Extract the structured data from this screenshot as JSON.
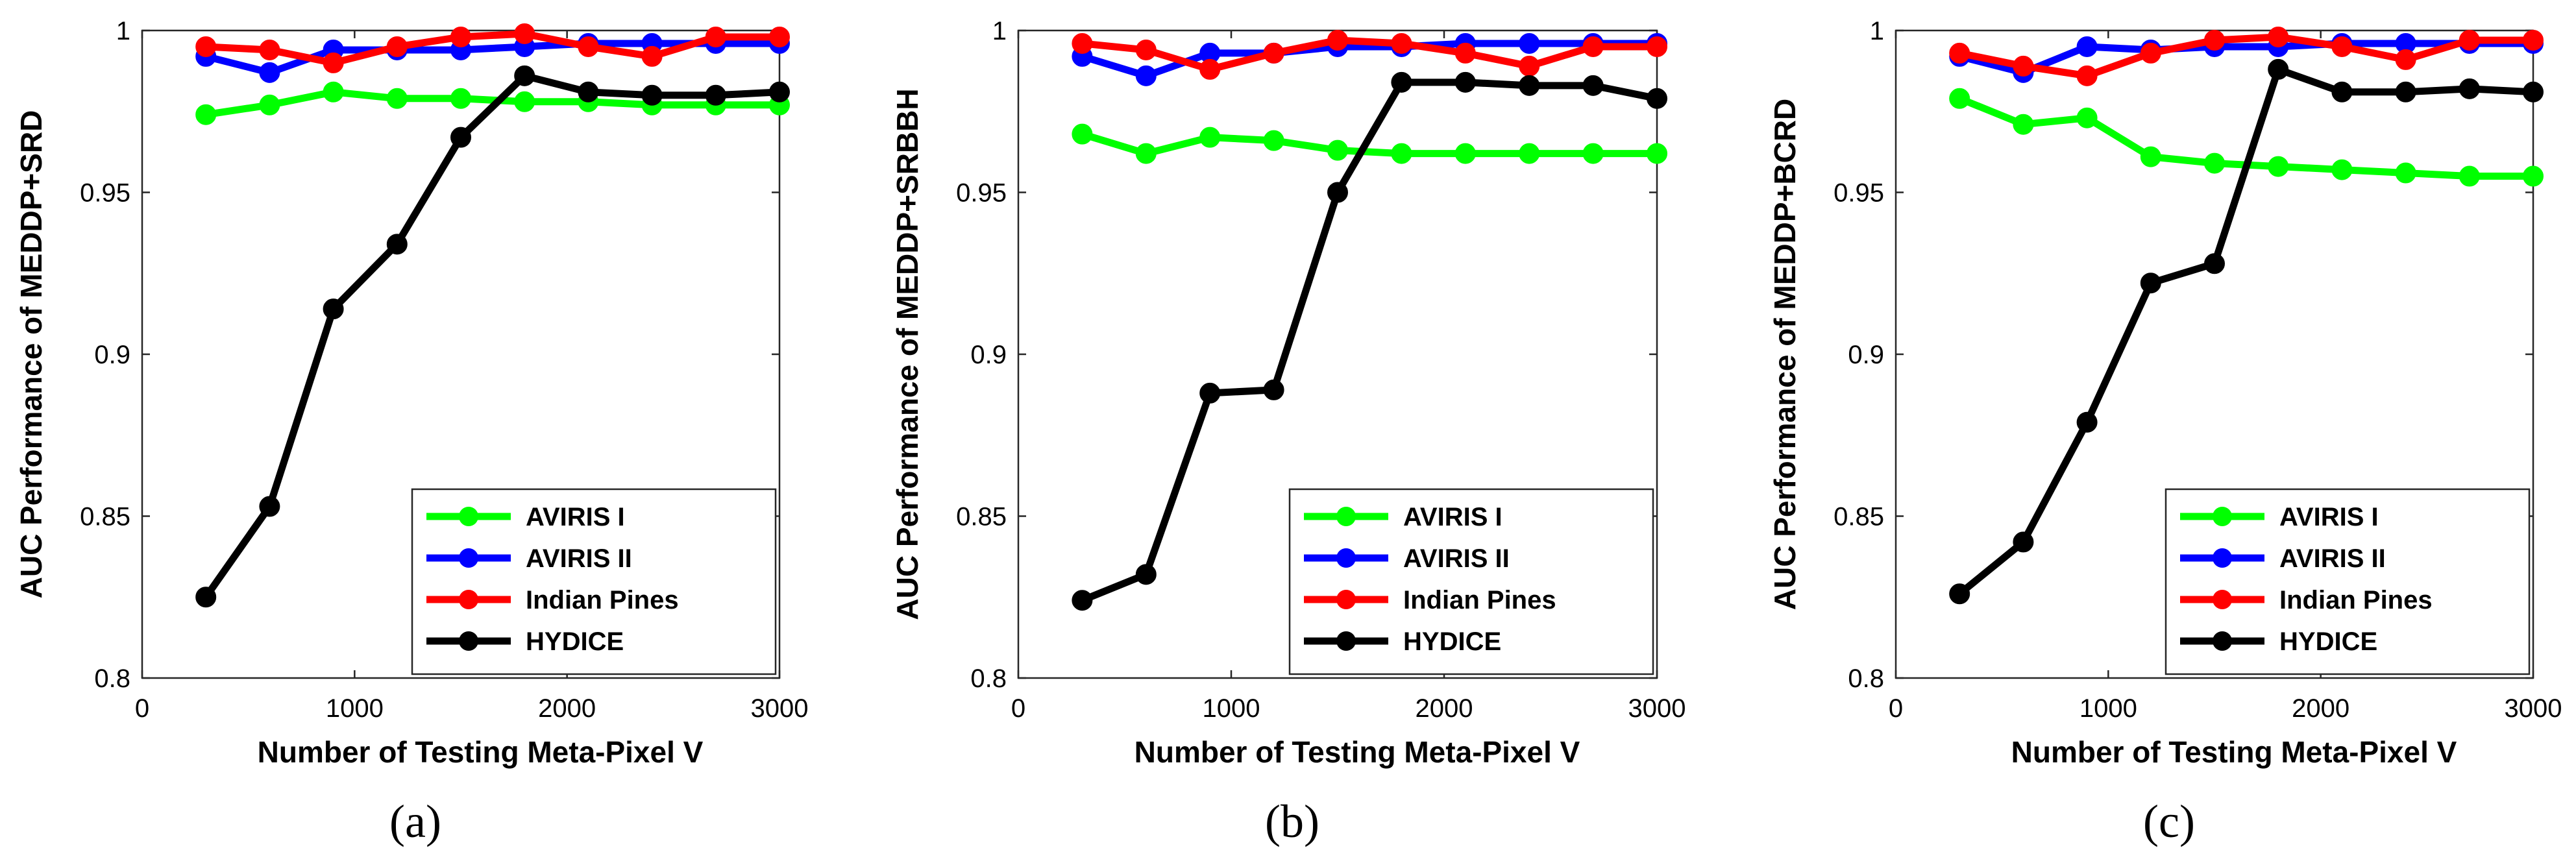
{
  "chart_data": [
    {
      "type": "line",
      "panel_label": "(a)",
      "xlabel": "Number of Testing Meta-Pixel V",
      "ylabel": "AUC Performance of MEDDP+SRD",
      "xlim": [
        0,
        3000
      ],
      "ylim": [
        0.8,
        1
      ],
      "xticks": [
        0,
        1000,
        2000,
        3000
      ],
      "yticks": [
        0.8,
        0.85,
        0.9,
        0.95,
        1
      ],
      "legend_position": "bottom-right",
      "x": [
        300,
        600,
        900,
        1200,
        1500,
        1800,
        2100,
        2400,
        2700,
        3000
      ],
      "series": [
        {
          "name": "AVIRIS I",
          "color": "#00ff00",
          "values": [
            0.974,
            0.977,
            0.981,
            0.979,
            0.979,
            0.978,
            0.978,
            0.977,
            0.977,
            0.977
          ]
        },
        {
          "name": "AVIRIS II",
          "color": "#0000ff",
          "values": [
            0.992,
            0.987,
            0.994,
            0.994,
            0.994,
            0.995,
            0.996,
            0.996,
            0.996,
            0.996
          ]
        },
        {
          "name": "Indian Pines",
          "color": "#ff0000",
          "values": [
            0.995,
            0.994,
            0.99,
            0.995,
            0.998,
            0.999,
            0.995,
            0.992,
            0.998,
            0.998
          ]
        },
        {
          "name": "HYDICE",
          "color": "#000000",
          "values": [
            0.825,
            0.853,
            0.914,
            0.934,
            0.967,
            0.986,
            0.981,
            0.98,
            0.98,
            0.981
          ]
        }
      ]
    },
    {
      "type": "line",
      "panel_label": "(b)",
      "xlabel": "Number of Testing Meta-Pixel V",
      "ylabel": "AUC Performance of MEDDP+SRBBH",
      "xlim": [
        0,
        3000
      ],
      "ylim": [
        0.8,
        1
      ],
      "xticks": [
        0,
        1000,
        2000,
        3000
      ],
      "yticks": [
        0.8,
        0.85,
        0.9,
        0.95,
        1
      ],
      "legend_position": "bottom-right",
      "x": [
        300,
        600,
        900,
        1200,
        1500,
        1800,
        2100,
        2400,
        2700,
        3000
      ],
      "series": [
        {
          "name": "AVIRIS I",
          "color": "#00ff00",
          "values": [
            0.968,
            0.962,
            0.967,
            0.966,
            0.963,
            0.962,
            0.962,
            0.962,
            0.962,
            0.962
          ]
        },
        {
          "name": "AVIRIS II",
          "color": "#0000ff",
          "values": [
            0.992,
            0.986,
            0.993,
            0.993,
            0.995,
            0.995,
            0.996,
            0.996,
            0.996,
            0.996
          ]
        },
        {
          "name": "Indian Pines",
          "color": "#ff0000",
          "values": [
            0.996,
            0.994,
            0.988,
            0.993,
            0.997,
            0.996,
            0.993,
            0.989,
            0.995,
            0.995
          ]
        },
        {
          "name": "HYDICE",
          "color": "#000000",
          "values": [
            0.824,
            0.832,
            0.888,
            0.889,
            0.95,
            0.984,
            0.984,
            0.983,
            0.983,
            0.979
          ]
        }
      ]
    },
    {
      "type": "line",
      "panel_label": "(c)",
      "xlabel": "Number of Testing Meta-Pixel V",
      "ylabel": "AUC Performance of MEDDP+BCRD",
      "xlim": [
        0,
        3000
      ],
      "ylim": [
        0.8,
        1
      ],
      "xticks": [
        0,
        1000,
        2000,
        3000
      ],
      "yticks": [
        0.8,
        0.85,
        0.9,
        0.95,
        1
      ],
      "legend_position": "bottom-right",
      "x": [
        300,
        600,
        900,
        1200,
        1500,
        1800,
        2100,
        2400,
        2700,
        3000
      ],
      "series": [
        {
          "name": "AVIRIS I",
          "color": "#00ff00",
          "values": [
            0.979,
            0.971,
            0.973,
            0.961,
            0.959,
            0.958,
            0.957,
            0.956,
            0.955,
            0.955
          ]
        },
        {
          "name": "AVIRIS II",
          "color": "#0000ff",
          "values": [
            0.992,
            0.987,
            0.995,
            0.994,
            0.995,
            0.995,
            0.996,
            0.996,
            0.996,
            0.996
          ]
        },
        {
          "name": "Indian Pines",
          "color": "#ff0000",
          "values": [
            0.993,
            0.989,
            0.986,
            0.993,
            0.997,
            0.998,
            0.995,
            0.991,
            0.997,
            0.997
          ]
        },
        {
          "name": "HYDICE",
          "color": "#000000",
          "values": [
            0.826,
            0.842,
            0.879,
            0.922,
            0.928,
            0.988,
            0.981,
            0.981,
            0.982,
            0.981
          ]
        }
      ]
    }
  ]
}
